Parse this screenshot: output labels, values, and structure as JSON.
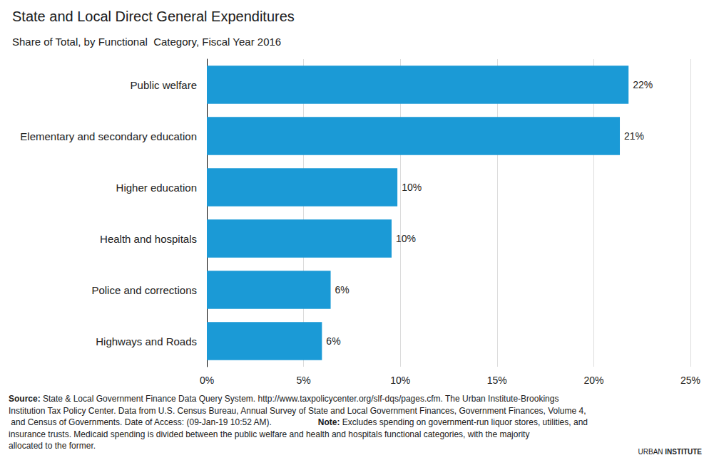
{
  "chart_data": {
    "type": "bar",
    "orientation": "horizontal",
    "title": "State and Local Direct General Expenditures",
    "subtitle": "Share of Total, by Functional  Category, Fiscal Year 2016",
    "categories": [
      "Public welfare",
      "Elementary and secondary education",
      "Higher education",
      "Health and hospitals",
      "Police and corrections",
      "Highways and Roads"
    ],
    "values": [
      21.8,
      21.35,
      9.85,
      9.55,
      6.4,
      5.95
    ],
    "value_labels": [
      "22%",
      "21%",
      "10%",
      "10%",
      "6%",
      "6%"
    ],
    "data_labels": true,
    "color": "#1b9ad6",
    "xlim": [
      0,
      25
    ],
    "xticks": [
      {
        "value": 0,
        "label": "0%"
      },
      {
        "value": 5,
        "label": "5%"
      },
      {
        "value": 10,
        "label": "10%"
      },
      {
        "value": 15,
        "label": "15%"
      },
      {
        "value": 20,
        "label": "20%"
      },
      {
        "value": 25,
        "label": "25%"
      }
    ],
    "grid": true,
    "source": "Source: State & Local Government Finance Data Query System. http://www.taxpolicycenter.org/slf-dqs/pages.cfm. The Urban Institute-Brookings Institution Tax Policy Center. Data from U.S. Census Bureau, Annual Survey of State and Local Government Finances, Government Finances, Volume 4, and Census of Governments. Date of Access: (09-Jan-19 10:52 AM).",
    "note": "Note: Excludes spending on government-run liquor stores, utilities, and insurance trusts. Medicaid spending is divided between the public welfare and health and hospitals functional categories, with the majority allocated to the former.",
    "logo": "URBAN INSTITUTE"
  }
}
